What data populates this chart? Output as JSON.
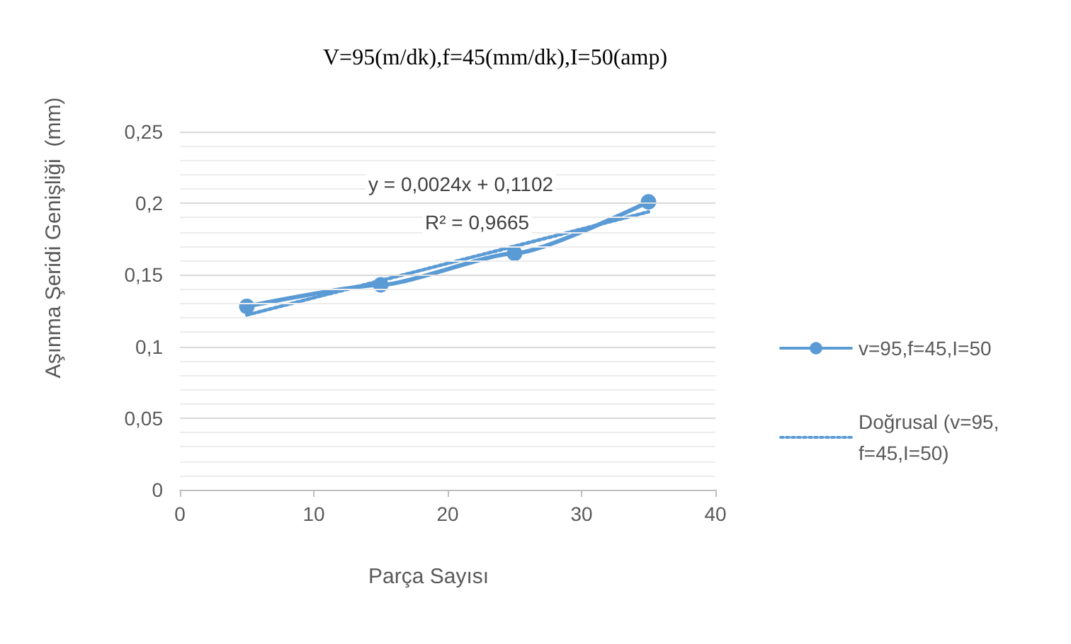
{
  "chart_data": {
    "type": "line",
    "title": "V=95(m/dk),f=45(mm/dk),I=50(amp)",
    "xlabel": "Parça Sayısı",
    "ylabel": "Aşınma Şeridi Genişliği  (mm)",
    "x": [
      5,
      15,
      25,
      35
    ],
    "series": [
      {
        "name": "v=95,f=45,I=50",
        "color": "#5b9bd5",
        "values": [
          0.128,
          0.143,
          0.165,
          0.201
        ],
        "marker": "circle",
        "line_style": "solid"
      },
      {
        "name": "Doğrusal (v=95,f=45,I=50)",
        "color": "#5b9bd5",
        "type": "line",
        "x": [
          5,
          35
        ],
        "values": [
          0.122,
          0.194
        ],
        "marker": "none",
        "line_style": "dotted"
      }
    ],
    "xlim": [
      0,
      40
    ],
    "xticks": [
      0,
      10,
      20,
      30,
      40
    ],
    "ylim": [
      0,
      0.25
    ],
    "yticks": [
      {
        "value": 0,
        "label": "0"
      },
      {
        "value": 0.01,
        "label": null
      },
      {
        "value": 0.02,
        "label": null
      },
      {
        "value": 0.03,
        "label": null
      },
      {
        "value": 0.04,
        "label": null
      },
      {
        "value": 0.05,
        "label": "0,05"
      },
      {
        "value": 0.06,
        "label": null
      },
      {
        "value": 0.07,
        "label": null
      },
      {
        "value": 0.08,
        "label": null
      },
      {
        "value": 0.09,
        "label": null
      },
      {
        "value": 0.1,
        "label": "0,1"
      },
      {
        "value": 0.11,
        "label": null
      },
      {
        "value": 0.12,
        "label": null
      },
      {
        "value": 0.13,
        "label": null
      },
      {
        "value": 0.14,
        "label": null
      },
      {
        "value": 0.15,
        "label": "0,15"
      },
      {
        "value": 0.16,
        "label": null
      },
      {
        "value": 0.17,
        "label": null
      },
      {
        "value": 0.18,
        "label": null
      },
      {
        "value": 0.19,
        "label": null
      },
      {
        "value": 0.2,
        "label": "0,2"
      },
      {
        "value": 0.21,
        "label": null
      },
      {
        "value": 0.22,
        "label": null
      },
      {
        "value": 0.23,
        "label": null
      },
      {
        "value": 0.24,
        "label": null
      },
      {
        "value": 0.25,
        "label": "0,25"
      }
    ],
    "grid": "y",
    "legend": "right",
    "annotations": [
      "y = 0,0024x + 0,1102",
      "R² = 0,9665"
    ]
  }
}
